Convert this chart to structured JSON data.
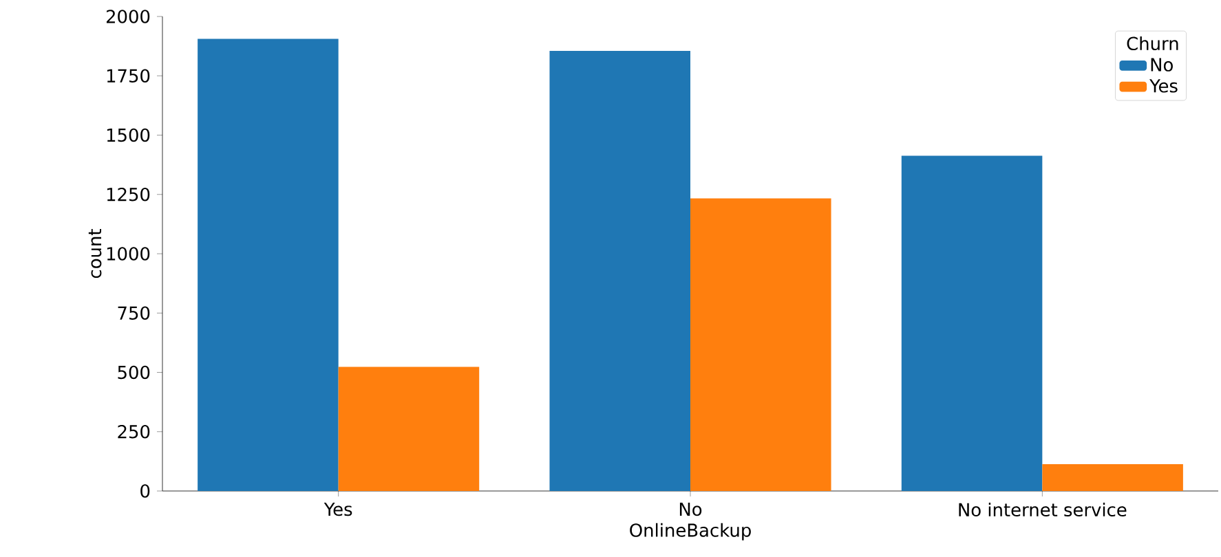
{
  "chart_data": {
    "type": "bar",
    "xlabel": "OnlineBackup",
    "ylabel": "count",
    "legend_title": "Churn",
    "categories": [
      "Yes",
      "No",
      "No internet service"
    ],
    "series": [
      {
        "name": "No",
        "color": "#1f77b4",
        "values": [
          1906,
          1855,
          1413
        ]
      },
      {
        "name": "Yes",
        "color": "#ff7f0e",
        "values": [
          523,
          1233,
          113
        ]
      }
    ],
    "ylim": [
      0,
      2000
    ],
    "yticks": [
      0,
      250,
      500,
      750,
      1000,
      1250,
      1500,
      1750,
      2000
    ],
    "legend": "top right",
    "grid": false
  }
}
